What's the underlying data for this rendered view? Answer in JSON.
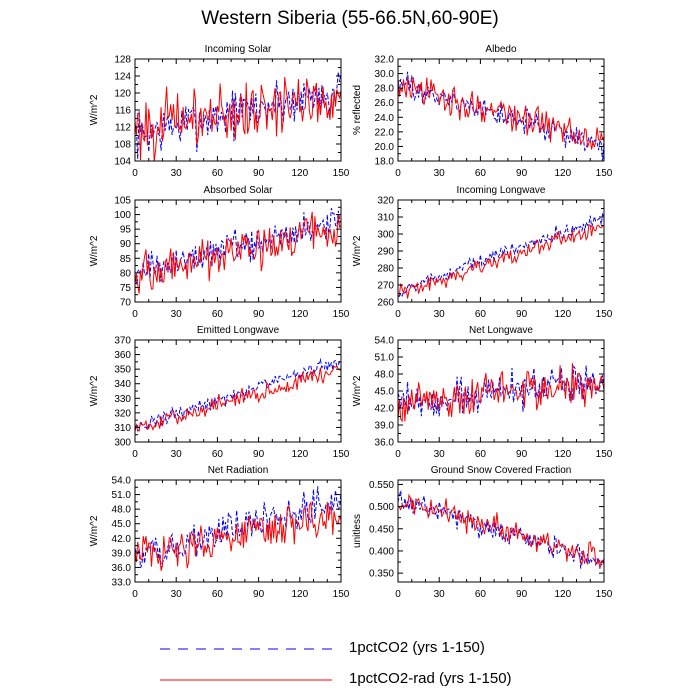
{
  "title": "Western Siberia (55-66.5N,60-90E)",
  "legend": [
    {
      "label": "1pctCO2 (yrs 1-150)",
      "color": "#0000ff",
      "dash": "dashed"
    },
    {
      "label": "1pctCO2-rad (yrs 1-150)",
      "color": "#ff0000",
      "dash": "solid"
    }
  ],
  "chart_data": [
    {
      "type": "line",
      "title": "Incoming Solar",
      "ylabel": "W/m^2",
      "xlim": [
        0,
        150
      ],
      "ylim": [
        104,
        128
      ],
      "xticks": [
        "0",
        "30",
        "60",
        "90",
        "120",
        "150"
      ],
      "yticks": [
        "104",
        "108",
        "112",
        "116",
        "120",
        "124",
        "128"
      ],
      "series_start": [
        110,
        112
      ],
      "series_end": [
        121,
        119
      ],
      "amplitude": [
        4,
        5
      ]
    },
    {
      "type": "line",
      "title": "Albedo",
      "ylabel": "% reflected",
      "xlim": [
        0,
        150
      ],
      "ylim": [
        18,
        32
      ],
      "xticks": [
        "0",
        "30",
        "60",
        "90",
        "120",
        "150"
      ],
      "yticks": [
        "18.0",
        "20.0",
        "22.0",
        "24.0",
        "26.0",
        "28.0",
        "30.0",
        "32.0"
      ],
      "series_start": [
        28.5,
        28.2
      ],
      "series_end": [
        20.0,
        21.0
      ],
      "amplitude": [
        1.2,
        1.6
      ]
    },
    {
      "type": "line",
      "title": "Absorbed Solar",
      "ylabel": "W/m^2",
      "xlim": [
        0,
        150
      ],
      "ylim": [
        70,
        105
      ],
      "xticks": [
        "0",
        "30",
        "60",
        "90",
        "120",
        "150"
      ],
      "yticks": [
        "70",
        "75",
        "80",
        "85",
        "90",
        "95",
        "100",
        "105"
      ],
      "series_start": [
        80,
        79
      ],
      "series_end": [
        98,
        96
      ],
      "amplitude": [
        4,
        5
      ]
    },
    {
      "type": "line",
      "title": "Incoming Longwave",
      "ylabel": "W/m^2",
      "xlim": [
        0,
        150
      ],
      "ylim": [
        260,
        320
      ],
      "xticks": [
        "0",
        "30",
        "60",
        "90",
        "120",
        "150"
      ],
      "yticks": [
        "260",
        "270",
        "280",
        "290",
        "300",
        "310",
        "320"
      ],
      "series_start": [
        266,
        265
      ],
      "series_end": [
        310,
        305
      ],
      "amplitude": [
        3,
        3.5
      ]
    },
    {
      "type": "line",
      "title": "Emitted Longwave",
      "ylabel": "W/m^2",
      "xlim": [
        0,
        150
      ],
      "ylim": [
        300,
        370
      ],
      "xticks": [
        "0",
        "30",
        "60",
        "90",
        "120",
        "150"
      ],
      "yticks": [
        "300",
        "310",
        "320",
        "330",
        "340",
        "350",
        "360",
        "370"
      ],
      "series_start": [
        310,
        309
      ],
      "series_end": [
        356,
        350
      ],
      "amplitude": [
        3.5,
        4
      ]
    },
    {
      "type": "line",
      "title": "Net Longwave",
      "ylabel": "W/m^2",
      "xlim": [
        0,
        150
      ],
      "ylim": [
        36,
        54
      ],
      "xticks": [
        "0",
        "30",
        "60",
        "90",
        "120",
        "150"
      ],
      "yticks": [
        "36.0",
        "39.0",
        "42.0",
        "45.0",
        "48.0",
        "51.0",
        "54.0"
      ],
      "series_start": [
        43,
        43
      ],
      "series_end": [
        47,
        46.5
      ],
      "amplitude": [
        2.3,
        2.6
      ]
    },
    {
      "type": "line",
      "title": "Net Radiation",
      "ylabel": "W/m^2",
      "xlim": [
        0,
        150
      ],
      "ylim": [
        33,
        54
      ],
      "xticks": [
        "0",
        "30",
        "60",
        "90",
        "120",
        "150"
      ],
      "yticks": [
        "33.0",
        "36.0",
        "39.0",
        "42.0",
        "45.0",
        "48.0",
        "51.0",
        "54.0"
      ],
      "series_start": [
        38,
        38
      ],
      "series_end": [
        50,
        47
      ],
      "amplitude": [
        2.5,
        3
      ]
    },
    {
      "type": "line",
      "title": "Ground Snow Covered Fraction",
      "ylabel": "unitless",
      "xlim": [
        0,
        150
      ],
      "ylim": [
        0.33,
        0.56
      ],
      "xticks": [
        "0",
        "30",
        "60",
        "90",
        "120",
        "150"
      ],
      "yticks": [
        "0.350",
        "0.400",
        "0.450",
        "0.500",
        "0.550"
      ],
      "series_start": [
        0.52,
        0.515
      ],
      "series_end": [
        0.37,
        0.38
      ],
      "amplitude": [
        0.018,
        0.02
      ]
    }
  ]
}
